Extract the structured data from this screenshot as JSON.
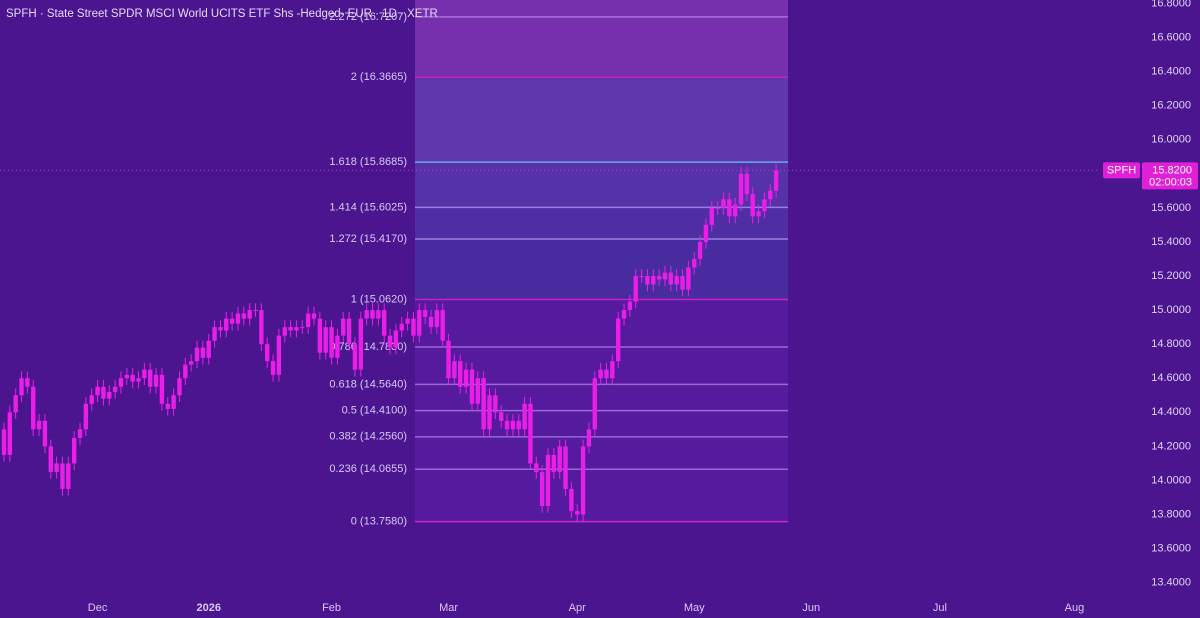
{
  "chart_data": {
    "type": "candlestick",
    "title": "SPFH · State Street SPDR MSCI World UCITS ETF Shs -Hedged- EUR · 1D · XETR",
    "color": "#ea1ee6",
    "x": [
      0,
      1,
      2,
      3,
      4,
      5,
      6,
      7,
      8,
      9,
      10,
      11,
      12,
      13,
      14,
      15,
      16,
      17,
      18,
      19,
      20,
      21,
      22,
      23,
      24,
      25,
      26,
      27,
      28,
      29,
      30,
      31,
      32,
      33,
      34,
      35,
      36,
      37,
      38,
      39,
      40,
      41,
      42,
      43,
      44,
      45,
      46,
      47,
      48,
      49,
      50,
      51,
      52,
      53,
      54,
      55,
      56,
      57,
      58,
      59,
      60,
      61,
      62,
      63,
      64,
      65,
      66,
      67,
      68,
      69,
      70,
      71,
      72,
      73,
      74,
      75,
      76,
      77,
      78,
      79,
      80,
      81,
      82,
      83,
      84,
      85,
      86,
      87,
      88,
      89,
      90,
      91,
      92,
      93,
      94,
      95,
      96,
      97,
      98,
      99,
      100,
      101,
      102,
      103,
      104,
      105,
      106,
      107,
      108,
      109,
      110,
      111,
      112,
      113,
      114,
      115,
      116,
      117,
      118,
      119,
      120,
      121,
      122,
      123,
      124,
      125,
      126,
      127,
      128,
      129,
      130,
      131,
      132
    ],
    "open": [
      14.3,
      14.15,
      14.4,
      14.5,
      14.6,
      14.55,
      14.3,
      14.35,
      14.2,
      14.05,
      14.1,
      13.95,
      14.1,
      14.25,
      14.3,
      14.45,
      14.5,
      14.55,
      14.48,
      14.52,
      14.55,
      14.6,
      14.62,
      14.58,
      14.6,
      14.65,
      14.55,
      14.62,
      14.45,
      14.42,
      14.5,
      14.6,
      14.68,
      14.7,
      14.78,
      14.72,
      14.82,
      14.9,
      14.88,
      14.95,
      14.92,
      14.98,
      14.95,
      15.0,
      15.0,
      14.8,
      14.7,
      14.62,
      14.85,
      14.9,
      14.88,
      14.9,
      14.9,
      14.98,
      14.95,
      14.75,
      14.9,
      14.72,
      14.85,
      14.95,
      14.8,
      14.65,
      14.95,
      15.0,
      14.95,
      15.0,
      14.85,
      14.78,
      14.88,
      14.92,
      14.95,
      14.85,
      15.0,
      14.96,
      14.9,
      15.0,
      14.82,
      14.6,
      14.7,
      14.55,
      14.65,
      14.45,
      14.6,
      14.3,
      14.5,
      14.4,
      14.35,
      14.3,
      14.35,
      14.3,
      14.45,
      14.1,
      14.05,
      13.85,
      14.15,
      14.05,
      14.2,
      13.95,
      13.82,
      13.8,
      14.2,
      14.3,
      14.6,
      14.65,
      14.6,
      14.7,
      14.95,
      15.0,
      15.05,
      15.2,
      15.2,
      15.15,
      15.2,
      15.18,
      15.22,
      15.15,
      15.2,
      15.12,
      15.25,
      15.3,
      15.4,
      15.5,
      15.6,
      15.6,
      15.65,
      15.55,
      15.62,
      15.8,
      15.68,
      15.55,
      15.58,
      15.65,
      15.7
    ],
    "high": [
      14.34,
      14.44,
      14.54,
      14.64,
      14.64,
      14.59,
      14.39,
      14.39,
      14.24,
      14.14,
      14.14,
      14.14,
      14.29,
      14.34,
      14.49,
      14.54,
      14.59,
      14.59,
      14.56,
      14.59,
      14.64,
      14.66,
      14.66,
      14.64,
      14.69,
      14.69,
      14.66,
      14.66,
      14.49,
      14.54,
      14.64,
      14.72,
      14.74,
      14.82,
      14.82,
      14.86,
      14.94,
      14.94,
      14.99,
      14.99,
      15.02,
      15.02,
      15.04,
      15.04,
      15.04,
      14.84,
      14.74,
      14.89,
      14.94,
      14.94,
      14.94,
      14.94,
      15.02,
      15.02,
      14.99,
      14.94,
      14.94,
      14.89,
      14.99,
      14.99,
      14.84,
      14.99,
      15.04,
      15.04,
      15.04,
      15.04,
      14.89,
      14.92,
      14.96,
      14.99,
      14.99,
      15.04,
      15.04,
      15.0,
      15.04,
      15.04,
      14.86,
      14.74,
      14.74,
      14.69,
      14.69,
      14.64,
      14.64,
      14.54,
      14.54,
      14.44,
      14.39,
      14.39,
      14.39,
      14.49,
      14.49,
      14.14,
      14.09,
      14.19,
      14.19,
      14.24,
      14.24,
      13.99,
      13.86,
      14.24,
      14.34,
      14.64,
      14.69,
      14.69,
      14.74,
      14.99,
      15.04,
      15.09,
      15.24,
      15.24,
      15.24,
      15.24,
      15.24,
      15.26,
      15.26,
      15.24,
      15.24,
      15.29,
      15.34,
      15.44,
      15.54,
      15.64,
      15.64,
      15.69,
      15.69,
      15.66,
      15.84,
      15.84,
      15.72,
      15.62,
      15.69,
      15.74,
      15.86
    ],
    "low": [
      14.11,
      14.11,
      14.36,
      14.46,
      14.51,
      14.26,
      14.26,
      14.16,
      14.01,
      14.01,
      13.91,
      13.91,
      14.06,
      14.21,
      14.26,
      14.41,
      14.46,
      14.44,
      14.44,
      14.48,
      14.51,
      14.56,
      14.54,
      14.54,
      14.56,
      14.51,
      14.51,
      14.41,
      14.38,
      14.38,
      14.46,
      14.56,
      14.64,
      14.66,
      14.68,
      14.68,
      14.78,
      14.84,
      14.84,
      14.88,
      14.88,
      14.91,
      14.91,
      14.96,
      14.76,
      14.66,
      14.58,
      14.58,
      14.81,
      14.84,
      14.84,
      14.86,
      14.86,
      14.91,
      14.71,
      14.71,
      14.68,
      14.68,
      14.81,
      14.76,
      14.61,
      14.61,
      14.91,
      14.91,
      14.91,
      14.81,
      14.74,
      14.74,
      14.84,
      14.88,
      14.81,
      14.81,
      14.92,
      14.86,
      14.86,
      14.78,
      14.56,
      14.56,
      14.51,
      14.51,
      14.41,
      14.41,
      14.26,
      14.26,
      14.36,
      14.31,
      14.26,
      14.26,
      14.26,
      14.26,
      14.06,
      14.01,
      13.81,
      13.81,
      14.01,
      14.01,
      13.91,
      13.78,
      13.76,
      13.76,
      14.16,
      14.26,
      14.56,
      14.56,
      14.56,
      14.66,
      14.91,
      14.96,
      15.01,
      15.16,
      15.11,
      15.11,
      15.14,
      15.14,
      15.11,
      15.11,
      15.08,
      15.08,
      15.21,
      15.26,
      15.36,
      15.46,
      15.56,
      15.56,
      15.51,
      15.51,
      15.58,
      15.64,
      15.51,
      15.51,
      15.54,
      15.61,
      15.66
    ],
    "close": [
      14.15,
      14.4,
      14.5,
      14.6,
      14.55,
      14.3,
      14.35,
      14.2,
      14.05,
      14.1,
      13.95,
      14.1,
      14.25,
      14.3,
      14.45,
      14.5,
      14.55,
      14.48,
      14.52,
      14.55,
      14.6,
      14.62,
      14.58,
      14.6,
      14.65,
      14.55,
      14.62,
      14.45,
      14.42,
      14.5,
      14.6,
      14.68,
      14.7,
      14.78,
      14.72,
      14.82,
      14.9,
      14.88,
      14.95,
      14.92,
      14.98,
      14.95,
      15.0,
      15.0,
      14.8,
      14.7,
      14.62,
      14.85,
      14.9,
      14.88,
      14.9,
      14.9,
      14.98,
      14.95,
      14.75,
      14.9,
      14.72,
      14.85,
      14.95,
      14.8,
      14.65,
      14.95,
      15.0,
      14.95,
      15.0,
      14.85,
      14.78,
      14.88,
      14.92,
      14.95,
      14.85,
      15.0,
      14.96,
      14.9,
      15.0,
      14.82,
      14.6,
      14.7,
      14.55,
      14.65,
      14.45,
      14.6,
      14.3,
      14.5,
      14.4,
      14.35,
      14.3,
      14.35,
      14.3,
      14.45,
      14.1,
      14.05,
      13.85,
      14.15,
      14.05,
      14.2,
      13.95,
      13.82,
      13.8,
      14.2,
      14.3,
      14.6,
      14.65,
      14.6,
      14.7,
      14.95,
      15.0,
      15.05,
      15.2,
      15.2,
      15.15,
      15.2,
      15.18,
      15.22,
      15.15,
      15.2,
      15.12,
      15.25,
      15.3,
      15.4,
      15.5,
      15.6,
      15.6,
      15.65,
      15.55,
      15.62,
      15.8,
      15.68,
      15.55,
      15.58,
      15.65,
      15.7,
      15.82
    ],
    "xlim": [
      -0.68,
      186
    ],
    "xticks": [
      {
        "value": 16,
        "label": "Dec"
      },
      {
        "value": 35,
        "label": "2026"
      },
      {
        "value": 56,
        "label": "Feb"
      },
      {
        "value": 76,
        "label": "Mar"
      },
      {
        "value": 98,
        "label": "Apr"
      },
      {
        "value": 118,
        "label": "May"
      },
      {
        "value": 138,
        "label": "Jun"
      },
      {
        "value": 160,
        "label": "Jul"
      },
      {
        "value": 183,
        "label": "Aug"
      }
    ],
    "ylim": [
      13.31,
      16.82
    ],
    "yticks": [
      {
        "value": 13.4,
        "label": "13.4000"
      },
      {
        "value": 13.6,
        "label": "13.6000"
      },
      {
        "value": 13.8,
        "label": "13.8000"
      },
      {
        "value": 14.0,
        "label": "14.0000"
      },
      {
        "value": 14.2,
        "label": "14.2000"
      },
      {
        "value": 14.4,
        "label": "14.4000"
      },
      {
        "value": 14.6,
        "label": "14.6000"
      },
      {
        "value": 14.8,
        "label": "14.8000"
      },
      {
        "value": 15.0,
        "label": "15.0000"
      },
      {
        "value": 15.2,
        "label": "15.2000"
      },
      {
        "value": 15.4,
        "label": "15.4000"
      },
      {
        "value": 15.6,
        "label": "15.6000"
      },
      {
        "value": 15.8,
        "label": "15.8000"
      },
      {
        "value": 16.0,
        "label": "16.0000"
      },
      {
        "value": 16.2,
        "label": "16.2000"
      },
      {
        "value": 16.4,
        "label": "16.4000"
      },
      {
        "value": 16.6,
        "label": "16.6000"
      },
      {
        "value": 16.8,
        "label": "16.8000"
      }
    ],
    "grid": false,
    "fib_levels": [
      {
        "value": 13.758,
        "label": "0 (13.7580)",
        "color": "#d424cf",
        "fill": "#561a9e"
      },
      {
        "value": 14.0655,
        "label": "0.236 (14.0655)",
        "color": "#9a68d6",
        "fill": "#561a9e"
      },
      {
        "value": 14.256,
        "label": "0.382 (14.2560)",
        "color": "#9a68d6",
        "fill": "#561a9e"
      },
      {
        "value": 14.41,
        "label": "0.5 (14.4100)",
        "color": "#9a68d6",
        "fill": "#561a9e"
      },
      {
        "value": 14.564,
        "label": "0.618 (14.5640)",
        "color": "#9a68d6",
        "fill": "#561a9e"
      },
      {
        "value": 14.783,
        "label": "0.786 (14.7830)",
        "color": "#9a68d6",
        "fill": "#561a9e"
      },
      {
        "value": 15.062,
        "label": "1 (15.0620)",
        "color": "#c81fc8",
        "fill": "#482b9e"
      },
      {
        "value": 15.417,
        "label": "1.272 (15.4170)",
        "color": "#9a80e0",
        "fill": "#4f2ea4"
      },
      {
        "value": 15.6025,
        "label": "1.414 (15.6025)",
        "color": "#9a80e0",
        "fill": "#5632a8"
      },
      {
        "value": 15.8685,
        "label": "1.618 (15.8685)",
        "color": "#6aa8f2",
        "fill": "#6137ad"
      },
      {
        "value": 16.3665,
        "label": "2 (16.3665)",
        "color": "#c81fc8",
        "fill": "#7630ad"
      },
      {
        "value": 16.7207,
        "label": "2.272 (16.7207)",
        "color": "#a46fd8",
        "fill": "#7630ad"
      }
    ],
    "last_price": {
      "symbol": "SPFH",
      "value": 15.82,
      "label": "15.8200",
      "countdown": "02:00:03",
      "color": "#e020d6"
    }
  }
}
